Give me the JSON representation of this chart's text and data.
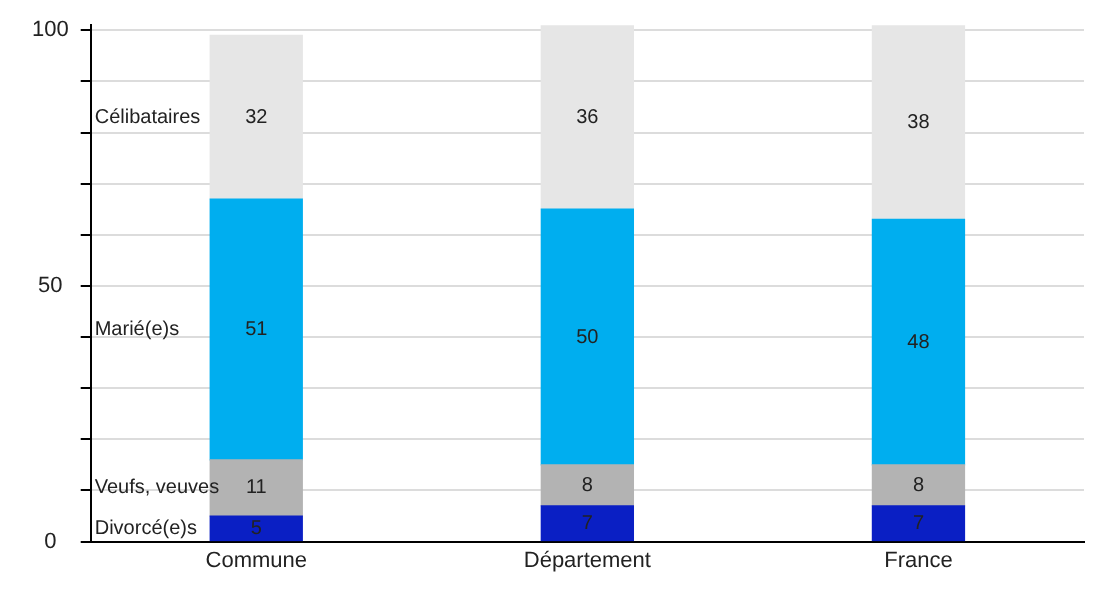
{
  "chart_data": {
    "type": "bar",
    "stacked": true,
    "categories": [
      "Commune",
      "Département",
      "France"
    ],
    "series": [
      {
        "name": "Divorcé(e)s",
        "color": "#0a1fc4",
        "values": [
          5,
          7,
          7
        ]
      },
      {
        "name": "Veufs, veuves",
        "color": "#b3b3b3",
        "values": [
          11,
          8,
          8
        ]
      },
      {
        "name": "Marié(e)s",
        "color": "#00aeef",
        "values": [
          51,
          50,
          48
        ]
      },
      {
        "name": "Célibataires",
        "color": "#e6e6e6",
        "values": [
          32,
          36,
          38
        ]
      }
    ],
    "ylim": [
      0,
      101
    ],
    "yticks": [
      0,
      {
        "value": 10,
        "label": null
      },
      {
        "value": 20,
        "label": null
      },
      {
        "value": 30,
        "label": null
      },
      {
        "value": 40,
        "label": null
      },
      50,
      {
        "value": 60,
        "label": null
      },
      {
        "value": 70,
        "label": null
      },
      {
        "value": 80,
        "label": null
      },
      {
        "value": 90,
        "label": null
      },
      100
    ],
    "grid": "y",
    "legend": false,
    "data_labels": true
  }
}
